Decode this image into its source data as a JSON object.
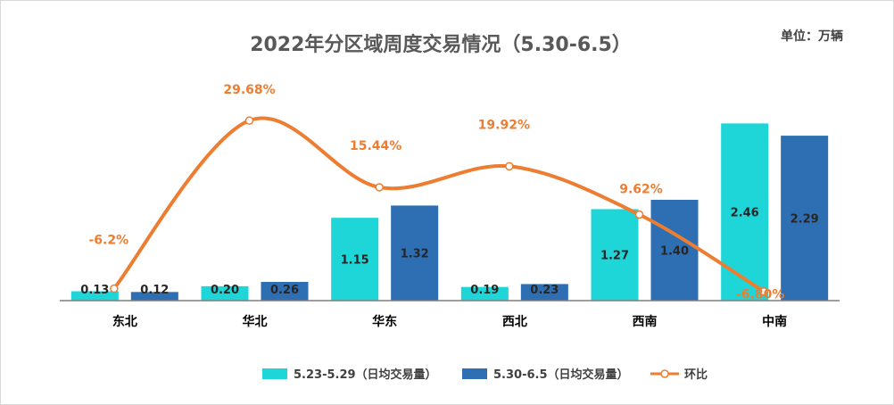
{
  "chart_data": {
    "type": "bar",
    "title": "2022年分区域周度交易情况（5.30-6.5）",
    "unit_label": "单位：万辆",
    "categories": [
      "东北",
      "华北",
      "华东",
      "西北",
      "西南",
      "中南"
    ],
    "series": [
      {
        "name": "5.23-5.29（日均交易量）",
        "values": [
          0.13,
          0.2,
          1.15,
          0.19,
          1.27,
          2.46
        ],
        "color": "#1ed6d8"
      },
      {
        "name": "5.30-6.5（日均交易量）",
        "values": [
          0.12,
          0.26,
          1.32,
          0.23,
          1.4,
          2.29
        ],
        "color": "#2e6fb4"
      }
    ],
    "line": {
      "name": "环比",
      "labels": [
        "-6.2%",
        "29.68%",
        "15.44%",
        "19.92%",
        "9.62%",
        "-6.80%"
      ],
      "values": [
        -6.2,
        29.68,
        15.44,
        19.92,
        9.62,
        -6.8
      ],
      "color": "#ed7d31"
    },
    "ylim": [
      0,
      2.7
    ]
  }
}
